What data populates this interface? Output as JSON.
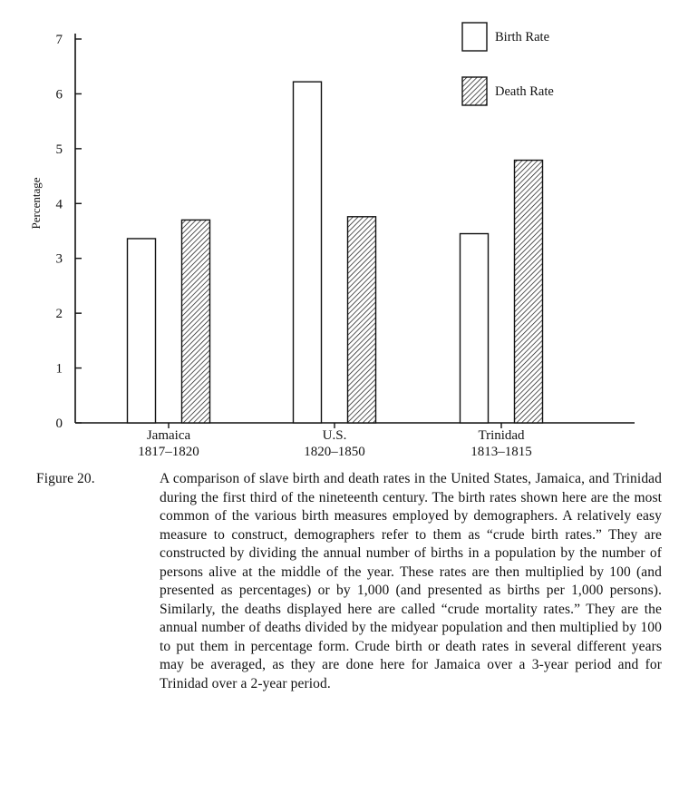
{
  "chart_data": {
    "type": "bar",
    "title": "",
    "xlabel": "",
    "ylabel": "Percentage",
    "ylim": [
      0,
      7
    ],
    "yticks": [
      0,
      1,
      2,
      3,
      4,
      5,
      6,
      7
    ],
    "categories": [
      {
        "name": "Jamaica",
        "period": "1817–1820"
      },
      {
        "name": "U.S.",
        "period": "1820–1850"
      },
      {
        "name": "Trinidad",
        "period": "1813–1815"
      }
    ],
    "series": [
      {
        "name": "Birth Rate",
        "fill": "white",
        "values": [
          3.36,
          6.22,
          3.45
        ]
      },
      {
        "name": "Death Rate",
        "fill": "hatched",
        "values": [
          3.7,
          3.76,
          4.79
        ]
      }
    ],
    "legend_position": "top-right",
    "grid": false
  },
  "caption": {
    "label": "Figure 20.",
    "text": "A comparison of slave birth and death rates in the United States, Jamaica, and Trinidad during the first third of the nineteenth century. The birth rates shown here are the most common of the various birth measures employed by demographers. A relatively easy measure to construct, demographers refer to them as “crude birth rates.” They are constructed by dividing the annual number of births in a population by the number of persons alive at the middle of the year. These rates are then multiplied by 100 (and presented as percentages) or by 1,000 (and presented as births per 1,000 persons). Similarly, the deaths displayed here are called “crude mortality rates.” They are the annual number of deaths divided by the midyear population and then multiplied by 100 to put them in percentage form. Crude birth or death rates in several different years may be averaged, as they are done here for Jamaica over a 3-year period and for Trinidad over a 2-year period."
  },
  "colors": {
    "ink": "#111111",
    "paper": "#ffffff"
  }
}
